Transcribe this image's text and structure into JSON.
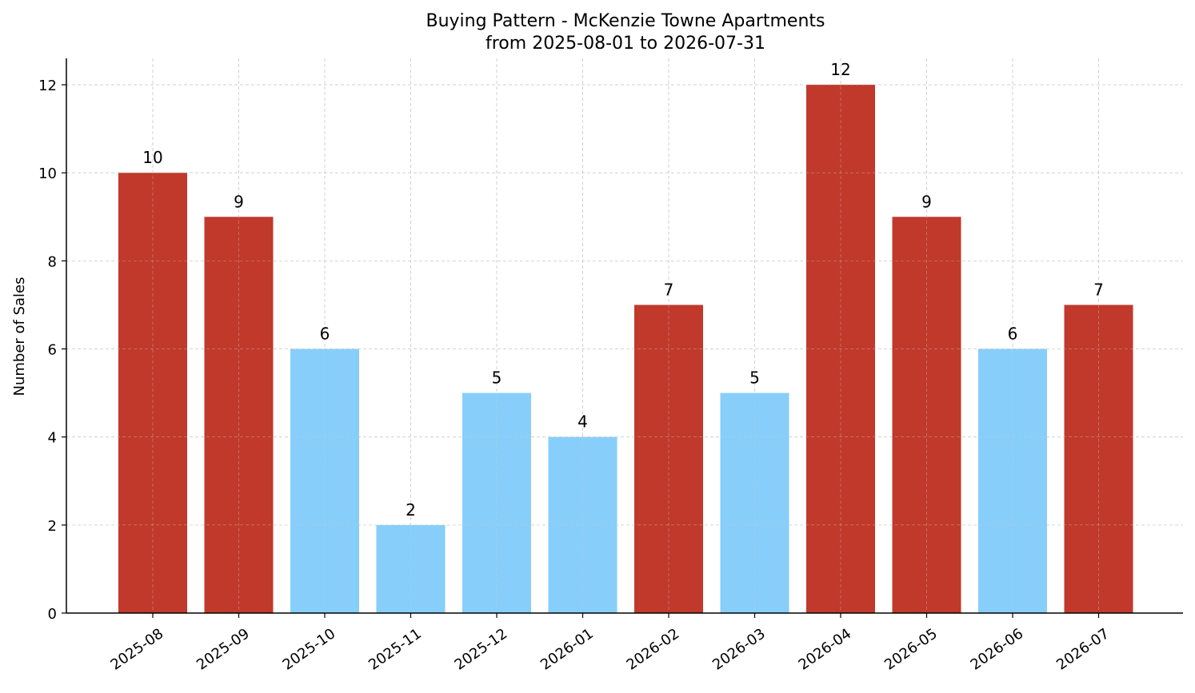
{
  "chart_data": {
    "type": "bar",
    "title": "Buying Pattern - McKenzie Towne Apartments",
    "subtitle": "from 2025-08-01 to 2026-07-31",
    "xlabel": "",
    "ylabel": "Number of Sales",
    "ylim": [
      0,
      12.6
    ],
    "yticks": [
      0,
      2,
      4,
      6,
      8,
      10,
      12
    ],
    "grid": true,
    "categories": [
      "2025-08",
      "2025-09",
      "2025-10",
      "2025-11",
      "2025-12",
      "2026-01",
      "2026-02",
      "2026-03",
      "2026-04",
      "2026-05",
      "2026-06",
      "2026-07"
    ],
    "values": [
      10,
      9,
      6,
      2,
      5,
      4,
      7,
      5,
      12,
      9,
      6,
      7
    ],
    "bar_colors": [
      "#c0392b",
      "#c0392b",
      "#87cefa",
      "#87cefa",
      "#87cefa",
      "#87cefa",
      "#c0392b",
      "#87cefa",
      "#c0392b",
      "#c0392b",
      "#87cefa",
      "#c0392b"
    ],
    "colors": {
      "high": "#c0392b",
      "low": "#87cefa",
      "grid": "#cccccc",
      "axis": "#000000"
    }
  }
}
